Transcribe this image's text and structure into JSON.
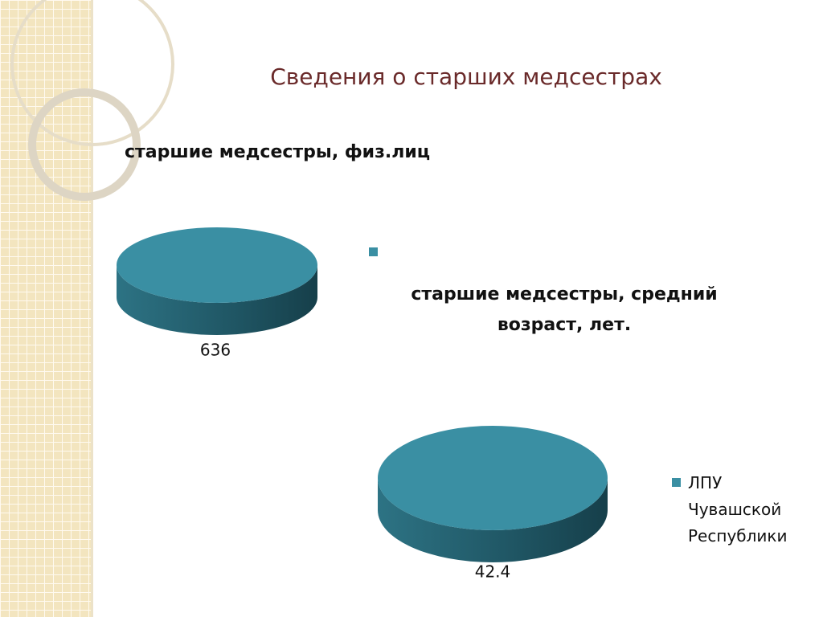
{
  "title": "Сведения о старших медсестрах",
  "chart_data": [
    {
      "type": "pie",
      "title": "старшие медсестры, физ.лиц",
      "values": [
        636
      ],
      "color": "#3a8fa3",
      "legend": true
    },
    {
      "type": "pie",
      "title": "старшие медсестры, средний возраст, лет.",
      "categories": [
        "ЛПУ Чувашской Республики"
      ],
      "values": [
        42.4
      ],
      "color": "#3a8fa3",
      "legend": true
    }
  ]
}
